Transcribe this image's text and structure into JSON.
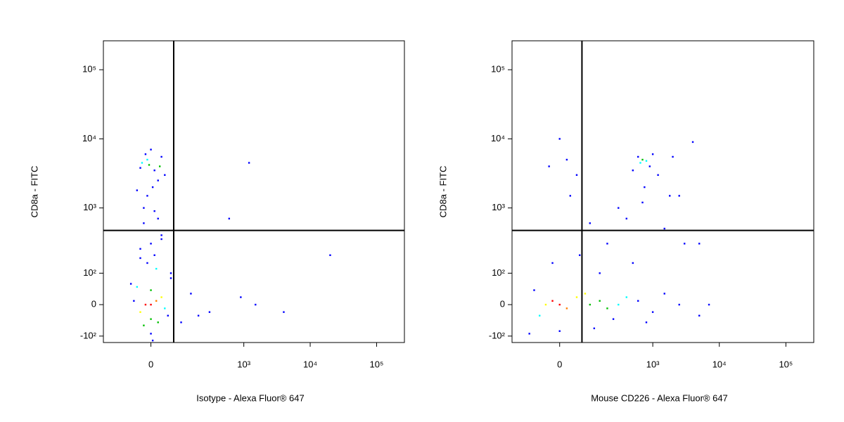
{
  "chart_data": [
    {
      "type": "scatter",
      "x_label": "Isotype - Alexa Fluor® 647",
      "y_label": "CD8a - FITC",
      "scale": "biexponential",
      "xlim": [
        -200,
        262144
      ],
      "ylim": [
        -130,
        262144
      ],
      "xticks": [
        0,
        {
          "value": 1000,
          "label": "10³"
        },
        {
          "value": 10000,
          "label": "10⁴"
        },
        {
          "value": 100000,
          "label": "10⁵"
        }
      ],
      "yticks": [
        {
          "value": -100,
          "label": "-10²"
        },
        0,
        {
          "value": 100,
          "label": "10²"
        },
        {
          "value": 1000,
          "label": "10³"
        },
        {
          "value": 10000,
          "label": "10⁴"
        },
        {
          "value": 100000,
          "label": "10⁵"
        }
      ],
      "gate": {
        "x": 70,
        "y": 470,
        "color": "#000000"
      },
      "x": [
        0,
        -15,
        15,
        -30,
        30,
        0,
        0,
        -40,
        40,
        -20,
        20,
        -50,
        50,
        -60,
        60,
        0,
        -25,
        25,
        -10,
        10,
        -30,
        30,
        -5,
        5,
        -20,
        20,
        0,
        10,
        -10,
        30,
        -30,
        15,
        -15,
        40,
        -40,
        60,
        100,
        150,
        300,
        900,
        10,
        -10,
        20,
        -20,
        0,
        30,
        -30,
        5,
        200,
        4000,
        1500,
        20000,
        600,
        1200
      ],
      "values": [
        0,
        0,
        10,
        -20,
        20,
        40,
        -40,
        50,
        -10,
        -60,
        -50,
        10,
        -30,
        60,
        80,
        -90,
        4500,
        4000,
        5000,
        3500,
        3800,
        5500,
        4200,
        2000,
        1000,
        700,
        300,
        200,
        150,
        400,
        250,
        120,
        6000,
        3000,
        1800,
        100,
        -50,
        30,
        -20,
        20,
        900,
        1500,
        2500,
        600,
        7000,
        350,
        180,
        -120,
        -30,
        -20,
        0,
        200,
        700,
        4500
      ],
      "colors": [
        "#ff0000",
        "#ff0000",
        "#ff8000",
        "#ffff00",
        "#ffff00",
        "#00c000",
        "#00c000",
        "#00ffff",
        "#00ffff",
        "#00c000",
        "#00c000",
        "#0000ff",
        "#0000ff",
        "#0000ff",
        "#0000ff",
        "#0000ff",
        "#00ffff",
        "#00c000",
        "#00ffff",
        "#0000ff",
        "#0000ff",
        "#0000ff",
        "#00c000",
        "#0000ff",
        "#0000ff",
        "#0000ff",
        "#0000ff",
        "#0000ff",
        "#0000ff",
        "#0000ff",
        "#0000ff",
        "#00ffff",
        "#0000ff",
        "#0000ff",
        "#0000ff",
        "#0000ff",
        "#0000ff",
        "#0000ff",
        "#0000ff",
        "#0000ff",
        "#0000ff",
        "#0000ff",
        "#0000ff",
        "#0000ff",
        "#0000ff",
        "#0000ff",
        "#0000ff",
        "#0000ff",
        "#0000ff",
        "#0000ff",
        "#0000ff",
        "#0000ff",
        "#0000ff",
        "#0000ff"
      ]
    },
    {
      "type": "scatter",
      "x_label": "Mouse CD226 - Alexa Fluor® 647",
      "y_label": "CD8a - FITC",
      "scale": "biexponential",
      "xlim": [
        -200,
        262144
      ],
      "ylim": [
        -130,
        262144
      ],
      "xticks": [
        0,
        {
          "value": 1000,
          "label": "10³"
        },
        {
          "value": 10000,
          "label": "10⁴"
        },
        {
          "value": 100000,
          "label": "10⁵"
        }
      ],
      "yticks": [
        {
          "value": -100,
          "label": "-10²"
        },
        0,
        {
          "value": 100,
          "label": "10²"
        },
        {
          "value": 1000,
          "label": "10³"
        },
        {
          "value": 10000,
          "label": "10⁴"
        },
        {
          "value": 100000,
          "label": "10⁵"
        }
      ],
      "gate": {
        "x": 68,
        "y": 470,
        "color": "#000000"
      },
      "x": [
        0,
        -20,
        20,
        -40,
        50,
        100,
        150,
        200,
        80,
        -60,
        300,
        400,
        250,
        600,
        1000,
        1500,
        2500,
        -80,
        0,
        120,
        700,
        650,
        800,
        600,
        900,
        500,
        1000,
        750,
        700,
        1200,
        400,
        2000,
        4000,
        1800,
        300,
        30,
        50,
        -30,
        0,
        100,
        200,
        60,
        -20,
        1500,
        3000,
        500,
        7000,
        5000,
        800,
        150,
        -100,
        2500,
        5000,
        20
      ],
      "values": [
        0,
        10,
        -10,
        0,
        20,
        0,
        10,
        -10,
        30,
        -30,
        0,
        20,
        -40,
        10,
        -20,
        30,
        0,
        40,
        -80,
        -70,
        5000,
        4500,
        4800,
        5500,
        4000,
        3500,
        6000,
        2000,
        1200,
        3000,
        700,
        5500,
        9000,
        1500,
        1000,
        1500,
        3000,
        4000,
        10000,
        600,
        300,
        200,
        150,
        500,
        300,
        150,
        0,
        -30,
        -50,
        100,
        -90,
        1500,
        300,
        5000
      ],
      "colors": [
        "#ff0000",
        "#ff0000",
        "#ff8000",
        "#ffff00",
        "#ffff00",
        "#00c000",
        "#00c000",
        "#00c000",
        "#ffff00",
        "#00ffff",
        "#00ffff",
        "#00ffff",
        "#0000ff",
        "#0000ff",
        "#0000ff",
        "#0000ff",
        "#0000ff",
        "#0000ff",
        "#0000ff",
        "#0000ff",
        "#00c000",
        "#00ffff",
        "#00ffff",
        "#0000ff",
        "#0000ff",
        "#0000ff",
        "#0000ff",
        "#0000ff",
        "#0000ff",
        "#0000ff",
        "#0000ff",
        "#0000ff",
        "#0000ff",
        "#0000ff",
        "#0000ff",
        "#0000ff",
        "#0000ff",
        "#0000ff",
        "#0000ff",
        "#0000ff",
        "#0000ff",
        "#0000ff",
        "#0000ff",
        "#0000ff",
        "#0000ff",
        "#0000ff",
        "#0000ff",
        "#0000ff",
        "#0000ff",
        "#0000ff",
        "#0000ff",
        "#0000ff",
        "#0000ff",
        "#0000ff"
      ]
    }
  ]
}
